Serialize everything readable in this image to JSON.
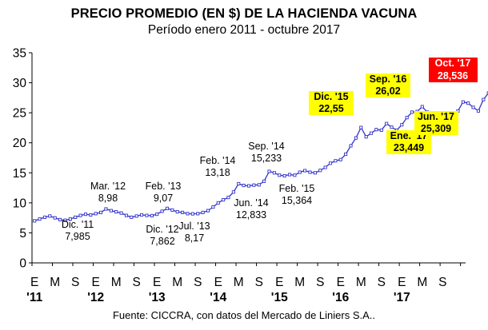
{
  "chart_data": {
    "type": "line",
    "title": "PRECIO PROMEDIO (EN $) DE LA HACIENDA VACUNA",
    "subtitle": "Período enero 2011 - octubre 2017",
    "source": "Fuente: CICCRA, con datos del Mercado de Liniers S.A..",
    "ylim": [
      0,
      35
    ],
    "y_ticks": [
      "0",
      "5",
      "10",
      "15",
      "20",
      "25",
      "30",
      "35"
    ],
    "grid": false,
    "x_tick_letters": [
      "E",
      "M",
      "S",
      "E",
      "M",
      "S",
      "E",
      "M",
      "S",
      "E",
      "M",
      "S",
      "E",
      "M",
      "S",
      "E",
      "M",
      "S",
      "E",
      "M",
      "S"
    ],
    "year_labels": [
      "'11",
      "'12",
      "'13",
      "'14",
      "'15",
      "'16",
      "'17"
    ],
    "series": [
      {
        "color": "#3333cc",
        "values": [
          7.0,
          7.3,
          7.6,
          7.8,
          7.5,
          7.2,
          7.1,
          7.3,
          7.6,
          7.9,
          8.1,
          7.985,
          8.2,
          8.4,
          8.98,
          8.7,
          8.5,
          8.3,
          7.9,
          7.6,
          7.8,
          8.0,
          7.9,
          7.862,
          8.1,
          8.6,
          9.07,
          8.8,
          8.5,
          8.4,
          8.2,
          8.17,
          8.2,
          8.4,
          8.7,
          9.3,
          10.0,
          10.5,
          10.9,
          11.8,
          13.18,
          12.9,
          12.833,
          12.95,
          13.0,
          13.6,
          15.233,
          15.0,
          14.6,
          14.5,
          14.7,
          14.6,
          15.1,
          15.364,
          15.1,
          15.0,
          15.4,
          15.9,
          16.6,
          17.0,
          17.2,
          18.1,
          19.5,
          20.8,
          22.55,
          21.0,
          21.6,
          22.2,
          22.1,
          23.2,
          22.6,
          22.1,
          23.0,
          24.2,
          25.1,
          25.2,
          26.02,
          25.1,
          24.2,
          24.2,
          23.6,
          23.449,
          24.8,
          25.3,
          26.8,
          26.6,
          25.9,
          25.309,
          27.2,
          28.3,
          28.9,
          28.536
        ]
      }
    ],
    "annotations": [
      {
        "index": 11,
        "date": "Dic. '11",
        "value": "7,985",
        "highlight": "none"
      },
      {
        "index": 14,
        "date": "Mar. '12",
        "value": "8,98",
        "highlight": "none"
      },
      {
        "index": 23,
        "date": "Dic. '12",
        "value": "7,862",
        "highlight": "none"
      },
      {
        "index": 26,
        "date": "Feb. '13",
        "value": "9,07",
        "highlight": "none"
      },
      {
        "index": 31,
        "date": "Jul. '13",
        "value": "8,17",
        "highlight": "none"
      },
      {
        "index": 40,
        "date": "Feb. '14",
        "value": "13,18",
        "highlight": "none"
      },
      {
        "index": 42,
        "date": "Jun. '14",
        "value": "12,833",
        "highlight": "none"
      },
      {
        "index": 46,
        "date": "Sep. '14",
        "value": "15,233",
        "highlight": "none"
      },
      {
        "index": 53,
        "date": "Feb. '15",
        "value": "15,364",
        "highlight": "none"
      },
      {
        "index": 64,
        "date": "Dic. '15",
        "value": "22,55",
        "highlight": "yellow"
      },
      {
        "index": 76,
        "date": "Sep. '16",
        "value": "26,02",
        "highlight": "yellow"
      },
      {
        "index": 81,
        "date": "Ene. '17",
        "value": "23,449",
        "highlight": "yellow"
      },
      {
        "index": 87,
        "date": "Jun. '17",
        "value": "25,309",
        "highlight": "yellow"
      },
      {
        "index": 91,
        "date": "Oct. '17",
        "value": "28,536",
        "highlight": "red"
      }
    ]
  }
}
